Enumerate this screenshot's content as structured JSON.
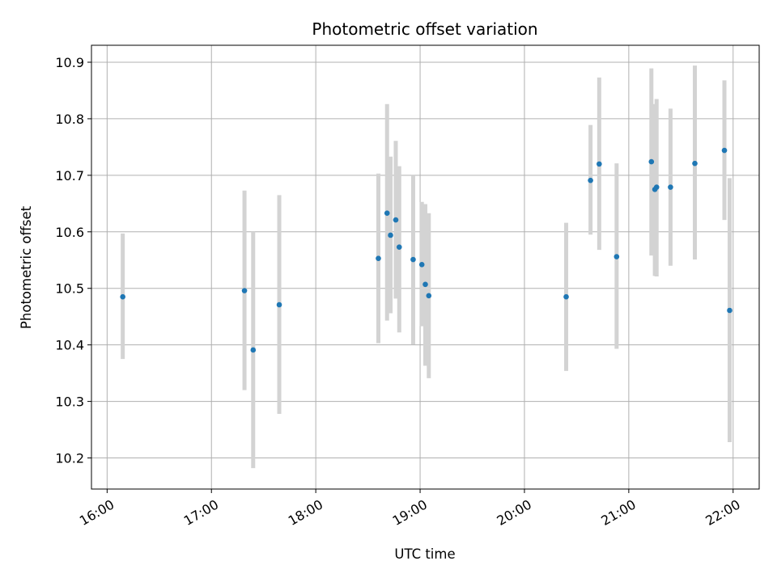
{
  "chart_data": {
    "type": "scatter",
    "title": "Photometric offset variation",
    "xlabel": "UTC time",
    "ylabel": "Photometric offset",
    "x_ticks": [
      "16:00",
      "17:00",
      "18:00",
      "19:00",
      "20:00",
      "21:00",
      "22:00"
    ],
    "y_ticks": [
      "10.2",
      "10.3",
      "10.4",
      "10.5",
      "10.6",
      "10.7",
      "10.8",
      "10.9"
    ],
    "xlim": [
      "15:51",
      "22:15"
    ],
    "ylim": [
      10.145,
      10.93
    ],
    "grid": true,
    "marker_color": "#1f77b4",
    "errorbar_color": "#d3d3d3",
    "points": [
      {
        "x": "16:09",
        "y": 10.485,
        "ylow": 10.375,
        "yhigh": 10.597
      },
      {
        "x": "17:19",
        "y": 10.496,
        "ylow": 10.32,
        "yhigh": 10.673
      },
      {
        "x": "17:24",
        "y": 10.391,
        "ylow": 10.182,
        "yhigh": 10.6
      },
      {
        "x": "17:39",
        "y": 10.471,
        "ylow": 10.278,
        "yhigh": 10.665
      },
      {
        "x": "18:36",
        "y": 10.553,
        "ylow": 10.403,
        "yhigh": 10.703
      },
      {
        "x": "18:41",
        "y": 10.633,
        "ylow": 10.443,
        "yhigh": 10.826
      },
      {
        "x": "18:43",
        "y": 10.594,
        "ylow": 10.456,
        "yhigh": 10.733
      },
      {
        "x": "18:46",
        "y": 10.621,
        "ylow": 10.482,
        "yhigh": 10.761
      },
      {
        "x": "18:48",
        "y": 10.573,
        "ylow": 10.422,
        "yhigh": 10.716
      },
      {
        "x": "18:56",
        "y": 10.551,
        "ylow": 10.401,
        "yhigh": 10.7
      },
      {
        "x": "19:01",
        "y": 10.542,
        "ylow": 10.433,
        "yhigh": 10.653
      },
      {
        "x": "19:03",
        "y": 10.507,
        "ylow": 10.363,
        "yhigh": 10.649
      },
      {
        "x": "19:05",
        "y": 10.487,
        "ylow": 10.341,
        "yhigh": 10.633
      },
      {
        "x": "20:24",
        "y": 10.485,
        "ylow": 10.354,
        "yhigh": 10.616
      },
      {
        "x": "20:38",
        "y": 10.691,
        "ylow": 10.595,
        "yhigh": 10.789
      },
      {
        "x": "20:43",
        "y": 10.72,
        "ylow": 10.568,
        "yhigh": 10.873
      },
      {
        "x": "20:53",
        "y": 10.556,
        "ylow": 10.393,
        "yhigh": 10.721
      },
      {
        "x": "21:13",
        "y": 10.724,
        "ylow": 10.558,
        "yhigh": 10.889
      },
      {
        "x": "21:15",
        "y": 10.675,
        "ylow": 10.522,
        "yhigh": 10.826
      },
      {
        "x": "21:16",
        "y": 10.679,
        "ylow": 10.521,
        "yhigh": 10.835
      },
      {
        "x": "21:24",
        "y": 10.679,
        "ylow": 10.54,
        "yhigh": 10.818
      },
      {
        "x": "21:38",
        "y": 10.721,
        "ylow": 10.551,
        "yhigh": 10.894
      },
      {
        "x": "21:55",
        "y": 10.744,
        "ylow": 10.621,
        "yhigh": 10.868
      },
      {
        "x": "21:58",
        "y": 10.461,
        "ylow": 10.228,
        "yhigh": 10.695
      }
    ]
  }
}
